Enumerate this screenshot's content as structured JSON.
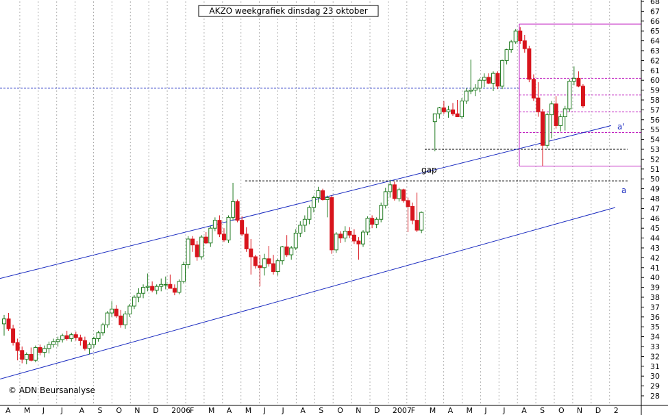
{
  "chart_data": {
    "type": "candlestick",
    "title": "AKZO  weekgrafiek dinsdag 23 oktober",
    "copyright": "© ADN Beursanalyse",
    "ylim": [
      28,
      68
    ],
    "yticks": [
      28,
      29,
      30,
      31,
      32,
      33,
      34,
      35,
      36,
      37,
      38,
      39,
      40,
      41,
      42,
      43,
      44,
      45,
      46,
      47,
      48,
      49,
      50,
      51,
      52,
      53,
      54,
      55,
      56,
      57,
      58,
      59,
      60,
      61,
      62,
      63,
      64,
      65,
      66,
      67,
      68
    ],
    "x_month_labels": [
      "A",
      "M",
      "J",
      "J",
      "A",
      "S",
      "O",
      "N",
      "D",
      "2006",
      "F",
      "M",
      "A",
      "M",
      "J",
      "J",
      "A",
      "S",
      "O",
      "N",
      "D",
      "2007",
      "F",
      "M",
      "A",
      "M",
      "J",
      "J",
      "A",
      "S",
      "O",
      "N",
      "D",
      "2"
    ],
    "grid": true,
    "colors": {
      "up_candle": "#1f7a1f",
      "down_candle": "#d8141c",
      "channel_line": "#1a2bc0",
      "resistance_dashed": "#000000",
      "blue_dashed": "#1a2bc0",
      "magenta_lines": "#c020c0",
      "grid": "#b0b0b0"
    },
    "annotations": {
      "gap": "gap",
      "a_prime": "a'",
      "a": "a"
    },
    "levels": {
      "blue_dashed_level": 59.2,
      "resistance_level_2006": 49.8,
      "gap_level": 53.0,
      "top_horizontal": 65.7,
      "bottom_horizontal": 51.3,
      "fib_levels": [
        60.2,
        58.5,
        56.8,
        54.7
      ]
    },
    "channel": {
      "upper_line": {
        "from": [
          0,
          39.9
        ],
        "to": [
          892,
          55.4
        ]
      },
      "lower_line": {
        "from": [
          0,
          29.7
        ],
        "to": [
          898,
          47.1
        ]
      },
      "channel_x_units": "week index"
    },
    "candles": [
      [
        35.3,
        36.2,
        34.1,
        35.8
      ],
      [
        35.8,
        36.4,
        34.6,
        34.8
      ],
      [
        34.8,
        35.2,
        33.1,
        33.4
      ],
      [
        33.4,
        33.8,
        31.6,
        32.6
      ],
      [
        32.6,
        33.0,
        31.3,
        31.7
      ],
      [
        31.7,
        32.4,
        31.2,
        32.2
      ],
      [
        32.2,
        32.9,
        31.5,
        31.6
      ],
      [
        31.6,
        33.1,
        31.4,
        32.9
      ],
      [
        32.9,
        33.2,
        32.1,
        32.4
      ],
      [
        32.4,
        33.1,
        31.9,
        32.8
      ],
      [
        32.8,
        33.5,
        32.3,
        33.2
      ],
      [
        33.2,
        33.8,
        32.9,
        33.5
      ],
      [
        33.5,
        34.0,
        33.0,
        33.7
      ],
      [
        33.7,
        34.3,
        33.4,
        34.1
      ],
      [
        34.1,
        34.6,
        33.6,
        33.8
      ],
      [
        33.8,
        34.4,
        33.5,
        34.2
      ],
      [
        34.2,
        34.5,
        33.6,
        33.9
      ],
      [
        33.9,
        34.2,
        33.1,
        33.6
      ],
      [
        33.6,
        34.0,
        32.6,
        32.8
      ],
      [
        32.8,
        33.4,
        32.2,
        33.2
      ],
      [
        33.2,
        34.0,
        32.9,
        33.8
      ],
      [
        33.8,
        34.6,
        33.5,
        34.4
      ],
      [
        34.4,
        35.4,
        34.1,
        35.2
      ],
      [
        35.2,
        36.6,
        34.9,
        36.4
      ],
      [
        36.4,
        37.6,
        36.0,
        36.8
      ],
      [
        36.8,
        37.2,
        35.9,
        36.1
      ],
      [
        36.1,
        36.7,
        34.9,
        35.2
      ],
      [
        35.2,
        36.6,
        34.8,
        36.3
      ],
      [
        36.3,
        37.3,
        36.0,
        37.1
      ],
      [
        37.1,
        38.2,
        36.8,
        38.0
      ],
      [
        38.0,
        38.9,
        37.5,
        38.4
      ],
      [
        38.4,
        39.3,
        37.9,
        39.0
      ],
      [
        39.0,
        40.4,
        38.6,
        39.1
      ],
      [
        39.1,
        39.6,
        38.5,
        38.7
      ],
      [
        38.7,
        39.3,
        38.3,
        39.1
      ],
      [
        39.1,
        39.9,
        38.6,
        39.3
      ],
      [
        39.3,
        40.1,
        38.8,
        39.3
      ],
      [
        39.3,
        40.3,
        38.9,
        38.9
      ],
      [
        38.9,
        39.3,
        38.2,
        38.5
      ],
      [
        38.5,
        39.8,
        38.3,
        39.6
      ],
      [
        39.6,
        41.6,
        39.4,
        41.3
      ],
      [
        41.3,
        44.2,
        40.9,
        43.9
      ],
      [
        43.9,
        44.2,
        42.6,
        43.3
      ],
      [
        43.3,
        43.7,
        41.7,
        42.1
      ],
      [
        42.1,
        44.3,
        41.8,
        44.1
      ],
      [
        44.1,
        44.6,
        43.4,
        43.5
      ],
      [
        43.5,
        45.2,
        43.1,
        45.0
      ],
      [
        45.0,
        46.1,
        44.7,
        45.8
      ],
      [
        45.8,
        46.3,
        44.1,
        44.4
      ],
      [
        44.4,
        45.0,
        43.6,
        43.8
      ],
      [
        43.8,
        46.3,
        43.5,
        46.1
      ],
      [
        46.1,
        49.6,
        45.8,
        47.7
      ],
      [
        47.7,
        47.9,
        45.6,
        45.8
      ],
      [
        45.8,
        46.2,
        44.2,
        44.4
      ],
      [
        44.4,
        45.1,
        42.6,
        42.9
      ],
      [
        42.9,
        43.9,
        40.3,
        42.1
      ],
      [
        42.1,
        42.3,
        40.9,
        41.2
      ],
      [
        41.2,
        42.3,
        39.1,
        41.0
      ],
      [
        41.0,
        42.4,
        40.2,
        41.9
      ],
      [
        41.9,
        43.2,
        41.1,
        41.4
      ],
      [
        41.4,
        42.3,
        40.3,
        40.6
      ],
      [
        40.6,
        41.9,
        40.2,
        41.7
      ],
      [
        41.7,
        43.2,
        41.3,
        43.1
      ],
      [
        43.1,
        44.3,
        42.1,
        42.3
      ],
      [
        42.3,
        43.2,
        41.8,
        43.0
      ],
      [
        43.0,
        44.9,
        42.8,
        44.5
      ],
      [
        44.5,
        45.7,
        44.1,
        45.3
      ],
      [
        45.3,
        46.3,
        44.6,
        45.9
      ],
      [
        45.9,
        47.3,
        45.4,
        47.1
      ],
      [
        47.1,
        48.3,
        46.6,
        48.1
      ],
      [
        48.1,
        49.2,
        47.6,
        48.8
      ],
      [
        48.8,
        49.0,
        47.8,
        47.9
      ],
      [
        47.9,
        48.3,
        46.1,
        48.1
      ],
      [
        48.1,
        48.3,
        42.4,
        42.8
      ],
      [
        42.8,
        44.6,
        42.5,
        44.4
      ],
      [
        44.4,
        44.7,
        43.5,
        44.0
      ],
      [
        44.0,
        45.2,
        43.6,
        44.7
      ],
      [
        44.7,
        45.1,
        44.0,
        44.3
      ],
      [
        44.3,
        44.9,
        43.4,
        43.7
      ],
      [
        43.7,
        44.1,
        41.8,
        43.4
      ],
      [
        43.4,
        44.8,
        43.1,
        44.6
      ],
      [
        44.6,
        46.2,
        44.3,
        46.0
      ],
      [
        46.0,
        46.3,
        45.0,
        45.4
      ],
      [
        45.4,
        46.1,
        45.0,
        45.9
      ],
      [
        45.9,
        47.6,
        45.6,
        47.3
      ],
      [
        47.3,
        49.1,
        47.0,
        48.7
      ],
      [
        48.7,
        49.9,
        48.1,
        49.4
      ],
      [
        49.4,
        49.7,
        47.8,
        48.0
      ],
      [
        48.0,
        49.1,
        47.7,
        48.9
      ],
      [
        48.9,
        49.0,
        47.6,
        47.8
      ],
      [
        47.8,
        48.1,
        44.6,
        47.2
      ],
      [
        47.2,
        47.6,
        45.4,
        45.8
      ],
      [
        45.8,
        48.6,
        44.6,
        44.8
      ],
      [
        44.8,
        46.7,
        44.5,
        46.6
      ],
      [
        55.8,
        56.3,
        52.8,
        56.6
      ],
      [
        56.6,
        57.3,
        56.1,
        57.2
      ],
      [
        57.2,
        57.9,
        56.6,
        56.8
      ],
      [
        56.8,
        57.4,
        56.2,
        57.0
      ],
      [
        57.0,
        57.7,
        56.4,
        56.6
      ],
      [
        56.6,
        58.0,
        56.3,
        56.3
      ],
      [
        56.3,
        58.2,
        56.1,
        57.9
      ],
      [
        57.9,
        59.2,
        57.6,
        58.9
      ],
      [
        58.9,
        62.1,
        58.6,
        59.0
      ],
      [
        59.0,
        59.6,
        58.4,
        59.2
      ],
      [
        59.2,
        60.2,
        58.8,
        60.0
      ],
      [
        60.0,
        60.7,
        59.3,
        60.3
      ],
      [
        60.3,
        60.7,
        59.6,
        59.7
      ],
      [
        59.7,
        60.9,
        58.9,
        60.7
      ],
      [
        60.7,
        60.9,
        59.1,
        59.4
      ],
      [
        59.4,
        62.1,
        59.1,
        62.0
      ],
      [
        62.0,
        63.2,
        61.6,
        63.1
      ],
      [
        63.1,
        64.1,
        62.8,
        63.9
      ],
      [
        63.9,
        65.2,
        63.7,
        65.0
      ],
      [
        65.0,
        65.4,
        63.7,
        64.0
      ],
      [
        64.0,
        64.6,
        62.8,
        63.2
      ],
      [
        63.2,
        63.5,
        59.8,
        60.1
      ],
      [
        60.1,
        60.6,
        57.9,
        58.2
      ],
      [
        58.2,
        59.8,
        56.3,
        56.8
      ],
      [
        56.8,
        57.1,
        51.3,
        53.4
      ],
      [
        53.4,
        56.7,
        53.1,
        56.5
      ],
      [
        56.5,
        57.9,
        54.1,
        57.6
      ],
      [
        57.6,
        58.4,
        55.1,
        55.4
      ],
      [
        55.4,
        56.6,
        54.8,
        56.3
      ],
      [
        56.3,
        57.4,
        54.9,
        57.1
      ],
      [
        57.1,
        60.1,
        56.8,
        59.9
      ],
      [
        59.9,
        61.4,
        59.5,
        60.2
      ],
      [
        60.2,
        60.9,
        59.3,
        59.4
      ],
      [
        59.4,
        59.6,
        57.2,
        57.4
      ]
    ]
  }
}
